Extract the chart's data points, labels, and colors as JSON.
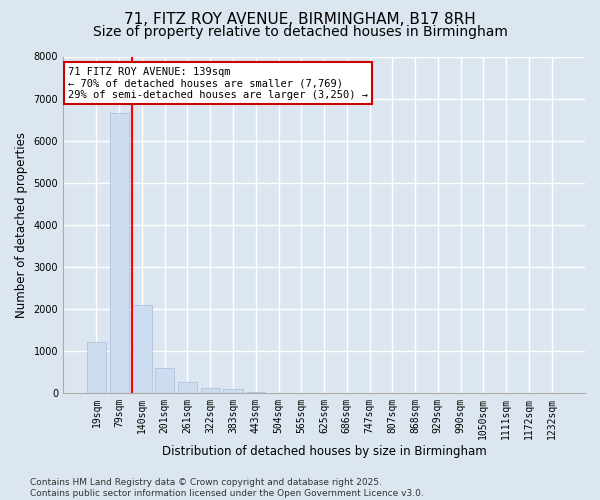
{
  "title": "71, FITZ ROY AVENUE, BIRMINGHAM, B17 8RH",
  "subtitle": "Size of property relative to detached houses in Birmingham",
  "xlabel": "Distribution of detached houses by size in Birmingham",
  "ylabel": "Number of detached properties",
  "categories": [
    "19sqm",
    "79sqm",
    "140sqm",
    "201sqm",
    "261sqm",
    "322sqm",
    "383sqm",
    "443sqm",
    "504sqm",
    "565sqm",
    "625sqm",
    "686sqm",
    "747sqm",
    "807sqm",
    "868sqm",
    "929sqm",
    "990sqm",
    "1050sqm",
    "1111sqm",
    "1172sqm",
    "1232sqm"
  ],
  "values": [
    1200,
    6650,
    2100,
    600,
    270,
    120,
    95,
    25,
    8,
    0,
    0,
    0,
    0,
    0,
    0,
    0,
    0,
    0,
    0,
    0,
    0
  ],
  "bar_color": "#ccddf0",
  "bar_edge_color": "#aabbdd",
  "red_line_index": 2,
  "ylim": [
    0,
    8000
  ],
  "yticks": [
    0,
    1000,
    2000,
    3000,
    4000,
    5000,
    6000,
    7000,
    8000
  ],
  "annotation_text": "71 FITZ ROY AVENUE: 139sqm\n← 70% of detached houses are smaller (7,769)\n29% of semi-detached houses are larger (3,250) →",
  "annotation_box_color": "#ffffff",
  "annotation_box_edge_color": "#cc0000",
  "footer_line1": "Contains HM Land Registry data © Crown copyright and database right 2025.",
  "footer_line2": "Contains public sector information licensed under the Open Government Licence v3.0.",
  "background_color": "#dce6f0",
  "plot_background_color": "#dce6f0",
  "grid_color": "#ffffff",
  "title_fontsize": 11,
  "subtitle_fontsize": 10,
  "axis_label_fontsize": 8.5,
  "tick_fontsize": 7,
  "footer_fontsize": 6.5,
  "annotation_fontsize": 7.5
}
